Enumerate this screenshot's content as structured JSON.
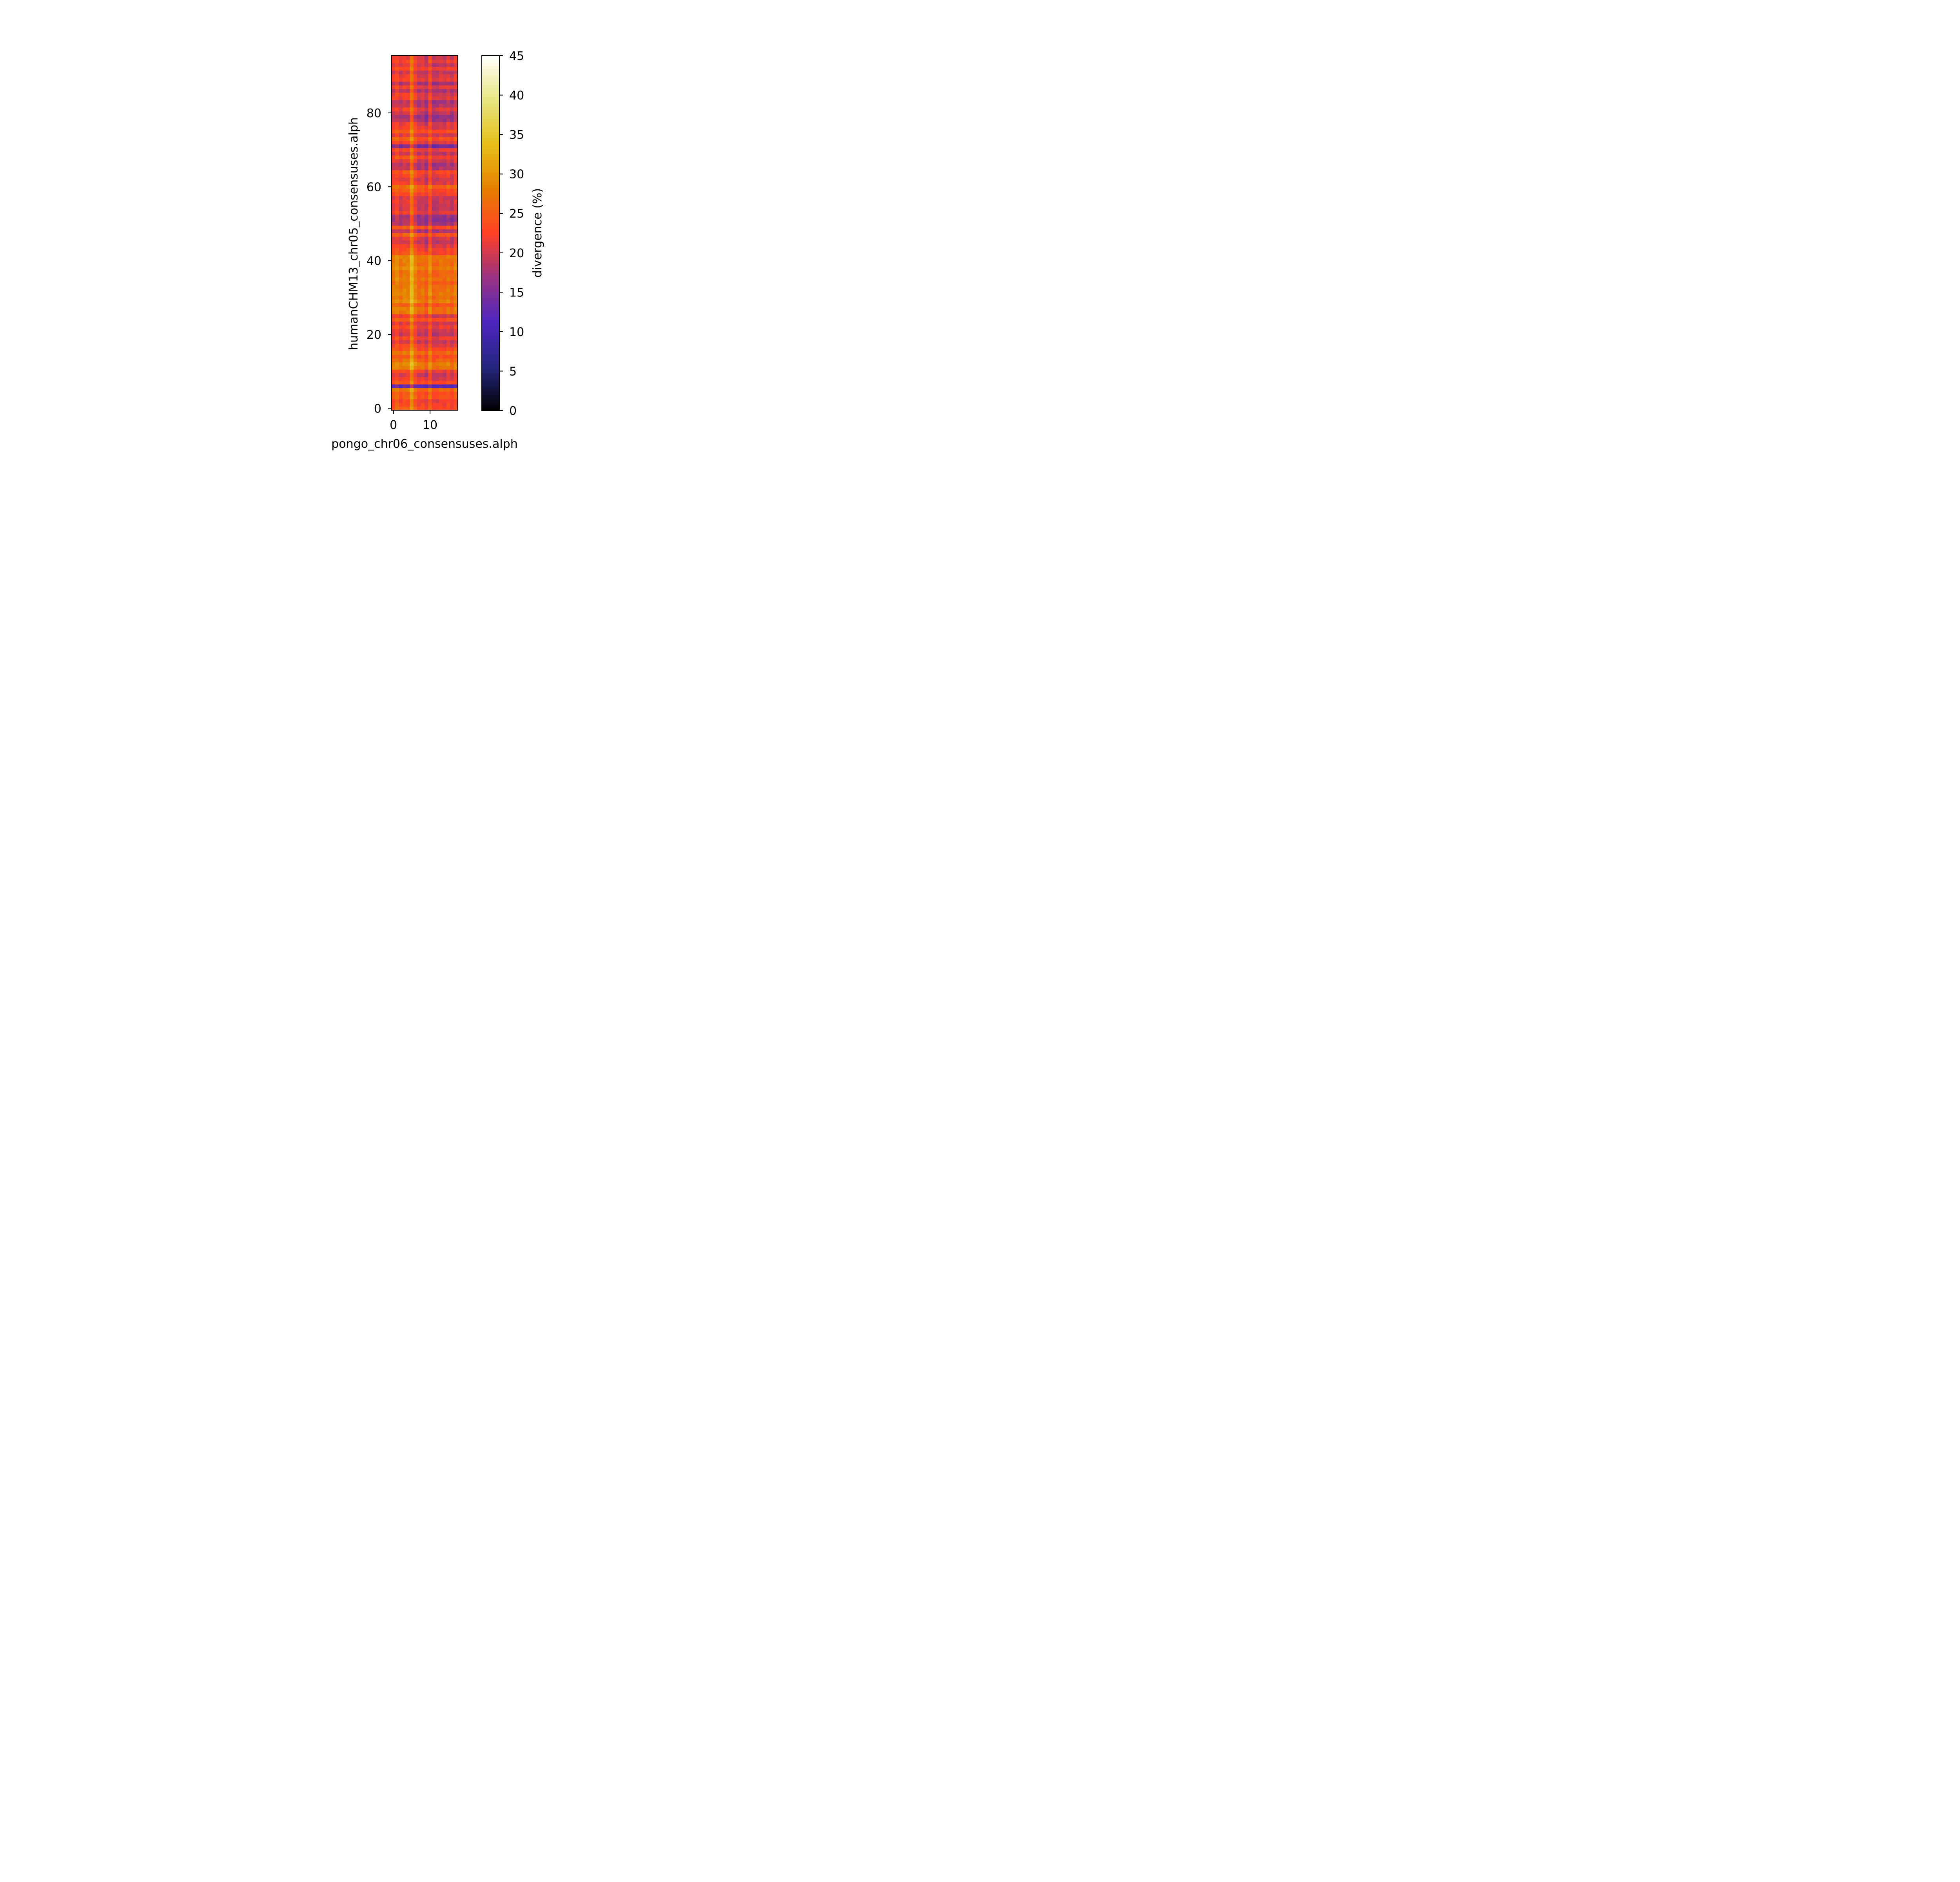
{
  "chart_data": {
    "type": "heatmap",
    "title": "",
    "xlabel": "pongo_chr06_consensuses.alph",
    "ylabel": "humanCHM13_chr05_consensuses.alph",
    "x_ticks": [
      0,
      10
    ],
    "y_ticks": [
      0,
      20,
      40,
      60,
      80
    ],
    "xlim": [
      -0.5,
      17.5
    ],
    "ylim": [
      -0.5,
      95.5
    ],
    "n_cols": 18,
    "n_rows": 96,
    "colormap": "CMRmap",
    "colorbar": {
      "label": "divergence (%)",
      "range": [
        0,
        45
      ],
      "ticks": [
        0,
        5,
        10,
        15,
        20,
        25,
        30,
        35,
        40,
        45
      ]
    },
    "col_profile": [
      0.0,
      1.3,
      -0.6,
      0.6,
      0.3,
      5.2,
      0.9,
      -1.4,
      -0.6,
      -2.4,
      1.6,
      -2.1,
      -1.8,
      -0.9,
      -1.5,
      -0.3,
      -1.8,
      0.2
    ],
    "row_profile": [
      24.5,
      23.5,
      22.8,
      25.2,
      24.0,
      27.0,
      13.2,
      24.0,
      22.0,
      20.5,
      22.8,
      28.0,
      29.0,
      26.5,
      24.5,
      27.0,
      24.0,
      22.5,
      20.5,
      22.8,
      20.0,
      20.5,
      22.8,
      21.0,
      24.8,
      21.5,
      27.5,
      28.0,
      25.0,
      29.0,
      27.5,
      28.5,
      28.0,
      27.5,
      26.5,
      28.0,
      27.0,
      27.0,
      28.5,
      27.5,
      28.0,
      28.5,
      24.0,
      23.5,
      22.0,
      20.0,
      21.0,
      25.0,
      19.0,
      24.5,
      18.5,
      17.5,
      17.8,
      22.0,
      20.5,
      20.0,
      21.0,
      20.5,
      23.0,
      24.5,
      26.5,
      22.0,
      21.0,
      22.5,
      24.0,
      19.5,
      18.5,
      21.0,
      23.5,
      20.0,
      22.5,
      15.5,
      21.5,
      25.0,
      21.0,
      24.5,
      22.0,
      21.5,
      18.5,
      17.5,
      20.0,
      22.0,
      19.5,
      18.5,
      22.0,
      21.5,
      19.0,
      22.0,
      18.5,
      22.0,
      21.5,
      20.0,
      23.0,
      20.5,
      22.5,
      21.0
    ]
  }
}
